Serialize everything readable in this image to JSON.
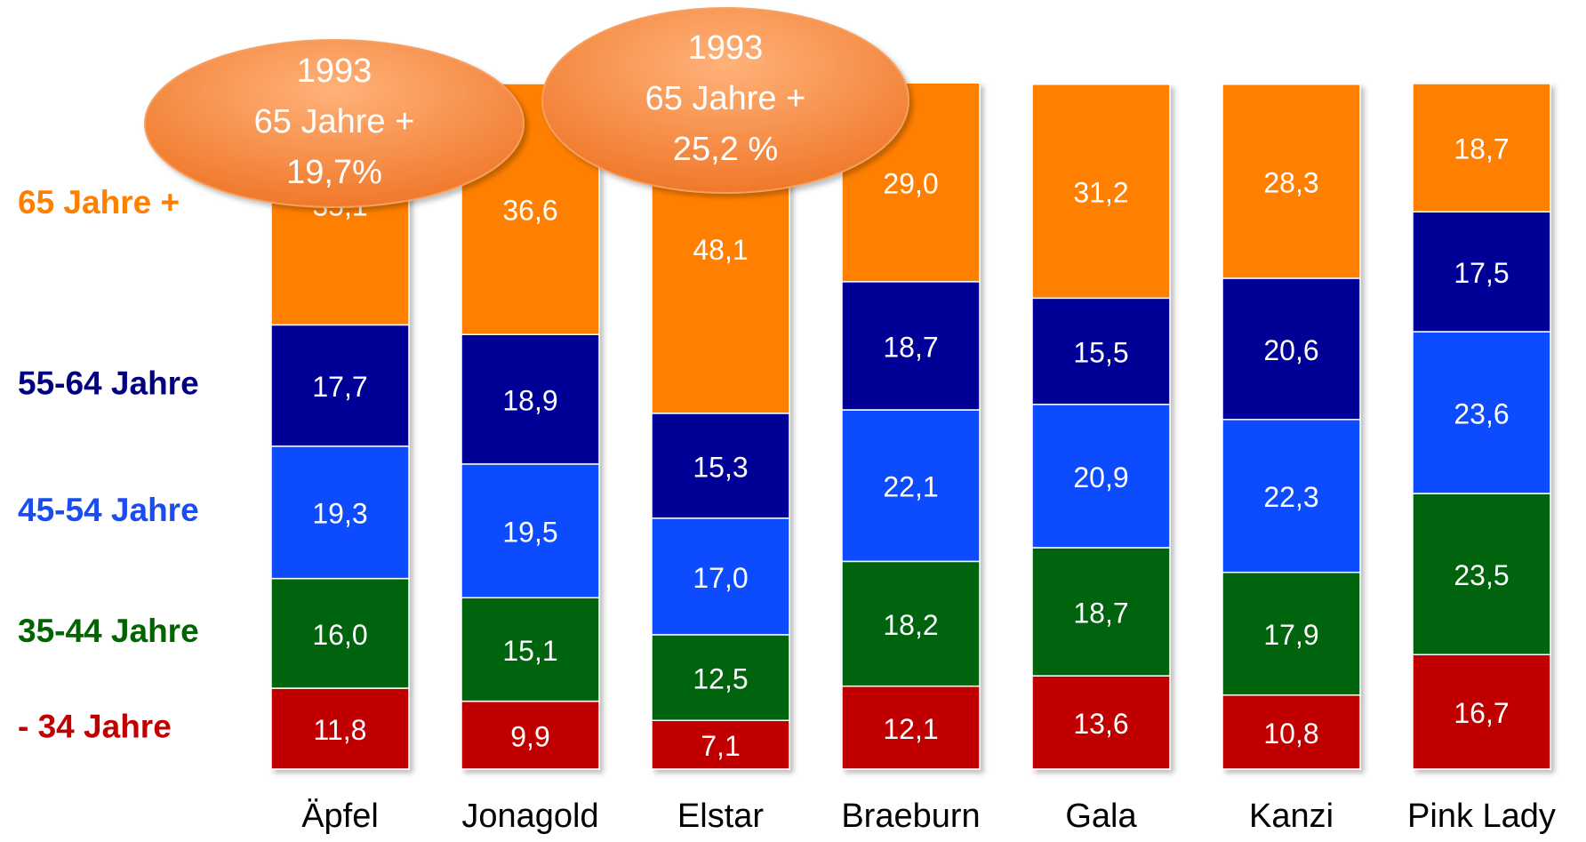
{
  "chart_data": {
    "type": "stacked_bar",
    "categories": [
      "Äpfel",
      "Jonagold",
      "Elstar",
      "Braeburn",
      "Gala",
      "Kanzi",
      "Pink Lady"
    ],
    "series": [
      {
        "name": "- 34 Jahre",
        "color": "#c00000",
        "label_color": "#c00000",
        "values": [
          11.8,
          9.9,
          7.1,
          12.1,
          13.6,
          10.8,
          16.7
        ],
        "value_labels": [
          "11,8",
          "9,9",
          "7,1",
          "12,1",
          "13,6",
          "10,8",
          "16,7"
        ]
      },
      {
        "name": "35-44 Jahre",
        "color": "#006410",
        "label_color": "#006400",
        "values": [
          16.0,
          15.1,
          12.5,
          18.2,
          18.7,
          17.9,
          23.5
        ],
        "value_labels": [
          "16,0",
          "15,1",
          "12,5",
          "18,2",
          "18,7",
          "17,9",
          "23,5"
        ]
      },
      {
        "name": "45-54 Jahre",
        "color": "#0a4cff",
        "label_color": "#1a4cf0",
        "values": [
          19.3,
          19.5,
          17.0,
          22.1,
          20.9,
          22.3,
          23.6
        ],
        "value_labels": [
          "19,3",
          "19,5",
          "17,0",
          "22,1",
          "20,9",
          "22,3",
          "23,6"
        ]
      },
      {
        "name": "55-64 Jahre",
        "color": "#000096",
        "label_color": "#000080",
        "values": [
          17.7,
          18.9,
          15.3,
          18.7,
          15.5,
          20.6,
          17.5
        ],
        "value_labels": [
          "17,7",
          "18,9",
          "15,3",
          "18,7",
          "15,5",
          "20,6",
          "17,5"
        ]
      },
      {
        "name": "65 Jahre +",
        "color": "#ff7f00",
        "label_color": "#ff7f00",
        "values": [
          35.1,
          36.6,
          48.1,
          29.0,
          31.2,
          28.3,
          18.7
        ],
        "value_labels": [
          "35,1",
          "36,6",
          "48,1",
          "29,0",
          "31,2",
          "28,3",
          "18,7"
        ]
      }
    ],
    "ylim": [
      0,
      100
    ],
    "annotations": [
      {
        "lines": [
          "1993",
          "65 Jahre +",
          "19,7%"
        ]
      },
      {
        "lines": [
          "1993",
          "65 Jahre +",
          "25,2 %"
        ]
      }
    ]
  }
}
